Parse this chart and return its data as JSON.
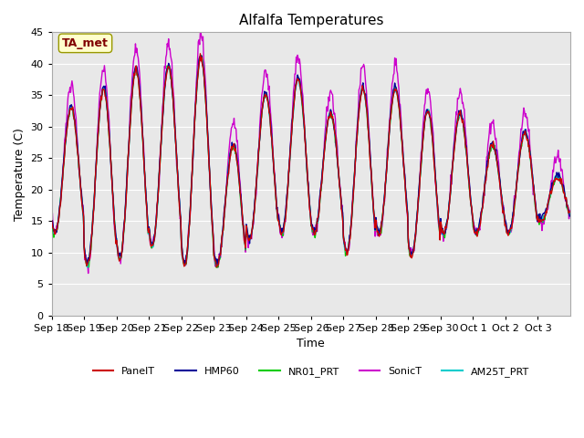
{
  "title": "Alfalfa Temperatures",
  "xlabel": "Time",
  "ylabel": "Temperature (C)",
  "ylim": [
    0,
    45
  ],
  "yticks": [
    0,
    5,
    10,
    15,
    20,
    25,
    30,
    35,
    40,
    45
  ],
  "background_color": "#e8e8e8",
  "fig_bg_color": "#ffffff",
  "annotation_text": "TA_met",
  "annotation_bg": "#ffffcc",
  "annotation_fg": "#800000",
  "annotation_edge": "#999900",
  "series_colors": {
    "PanelT": "#cc0000",
    "HMP60": "#000099",
    "NR01_PRT": "#00cc00",
    "SonicT": "#cc00cc",
    "AM25T_PRT": "#00cccc"
  },
  "xtick_labels": [
    "Sep 18",
    "Sep 19",
    "Sep 20",
    "Sep 21",
    "Sep 22",
    "Sep 23",
    "Sep 24",
    "Sep 25",
    "Sep 26",
    "Sep 27",
    "Sep 28",
    "Sep 29",
    "Sep 30",
    "Oct 1",
    "Oct 2",
    "Oct 3"
  ],
  "line_width": 1.0,
  "day_maxes": [
    33,
    36,
    39,
    39.5,
    41,
    27,
    35,
    37.5,
    32,
    36,
    36,
    32.5,
    32,
    27,
    29,
    22
  ],
  "day_mins": [
    13,
    8,
    9,
    11,
    8,
    8,
    12,
    13,
    13,
    10,
    13,
    9.5,
    13,
    13,
    13,
    15
  ]
}
